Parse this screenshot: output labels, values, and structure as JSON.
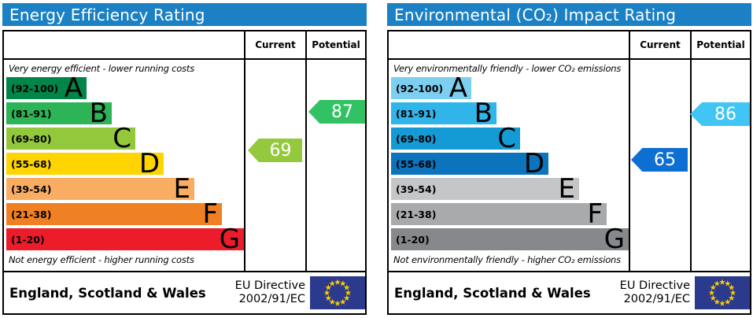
{
  "theme": {
    "header_bg": "#1b81c4",
    "header_text": "#ffffff",
    "border": "#000000",
    "eu_flag_bg": "#2b3a8c",
    "eu_star": "#ffcc00"
  },
  "panels": [
    {
      "title": "Energy Efficiency Rating",
      "columns": {
        "current": "Current",
        "potential": "Potential"
      },
      "top_note": "Very energy efficient - lower running costs",
      "bottom_note": "Not energy efficient - higher running costs",
      "bands": [
        {
          "range": "(92-100)",
          "letter": "A",
          "color": "#028548"
        },
        {
          "range": "(81-91)",
          "letter": "B",
          "color": "#2cb457"
        },
        {
          "range": "(69-80)",
          "letter": "C",
          "color": "#93c83d"
        },
        {
          "range": "(55-68)",
          "letter": "D",
          "color": "#ffd500"
        },
        {
          "range": "(39-54)",
          "letter": "E",
          "color": "#f9ad63"
        },
        {
          "range": "(21-38)",
          "letter": "F",
          "color": "#ef8023"
        },
        {
          "range": "(1-20)",
          "letter": "G",
          "color": "#ed1c2a"
        }
      ],
      "current": {
        "value": "69",
        "color": "#94c83d"
      },
      "potential": {
        "value": "87",
        "color": "#32c264"
      },
      "footer": {
        "region": "England, Scotland & Wales",
        "directive_line1": "EU Directive",
        "directive_line2": "2002/91/EC"
      }
    },
    {
      "title": "Environmental (CO₂) Impact Rating",
      "columns": {
        "current": "Current",
        "potential": "Potential"
      },
      "top_note": "Very environmentally friendly - lower CO₂ emissions",
      "bottom_note": "Not environmentally friendly - higher CO₂ emissions",
      "bands": [
        {
          "range": "(92-100)",
          "letter": "A",
          "color": "#7dcff2"
        },
        {
          "range": "(81-91)",
          "letter": "B",
          "color": "#2fb5e9"
        },
        {
          "range": "(69-80)",
          "letter": "C",
          "color": "#149bd6"
        },
        {
          "range": "(55-68)",
          "letter": "D",
          "color": "#0b74bd"
        },
        {
          "range": "(39-54)",
          "letter": "E",
          "color": "#c5c6c8"
        },
        {
          "range": "(21-38)",
          "letter": "F",
          "color": "#a8aaac"
        },
        {
          "range": "(1-20)",
          "letter": "G",
          "color": "#86888b"
        }
      ],
      "current": {
        "value": "65",
        "color": "#0c6fd1"
      },
      "potential": {
        "value": "86",
        "color": "#40c5f4"
      },
      "footer": {
        "region": "England, Scotland & Wales",
        "directive_line1": "EU Directive",
        "directive_line2": "2002/91/EC"
      }
    }
  ],
  "chart_data": [
    {
      "type": "bar",
      "title": "Energy Efficiency Rating",
      "categories": [
        "A (92-100)",
        "B (81-91)",
        "C (69-80)",
        "D (55-68)",
        "E (39-54)",
        "F (21-38)",
        "G (1-20)"
      ],
      "series": [
        {
          "name": "Current",
          "values": [
            69
          ],
          "band": "C"
        },
        {
          "name": "Potential",
          "values": [
            87
          ],
          "band": "B"
        }
      ],
      "value_range": [
        1,
        100
      ],
      "notes": [
        "Very energy efficient - lower running costs",
        "Not energy efficient - higher running costs"
      ],
      "footer": "England, Scotland & Wales · EU Directive 2002/91/EC",
      "legend_position": "none",
      "grid": false
    },
    {
      "type": "bar",
      "title": "Environmental (CO₂) Impact Rating",
      "categories": [
        "A (92-100)",
        "B (81-91)",
        "C (69-80)",
        "D (55-68)",
        "E (39-54)",
        "F (21-38)",
        "G (1-20)"
      ],
      "series": [
        {
          "name": "Current",
          "values": [
            65
          ],
          "band": "D"
        },
        {
          "name": "Potential",
          "values": [
            86
          ],
          "band": "B"
        }
      ],
      "value_range": [
        1,
        100
      ],
      "notes": [
        "Very environmentally friendly - lower CO₂ emissions",
        "Not environmentally friendly - higher CO₂ emissions"
      ],
      "footer": "England, Scotland & Wales · EU Directive 2002/91/EC",
      "legend_position": "none",
      "grid": false
    }
  ]
}
